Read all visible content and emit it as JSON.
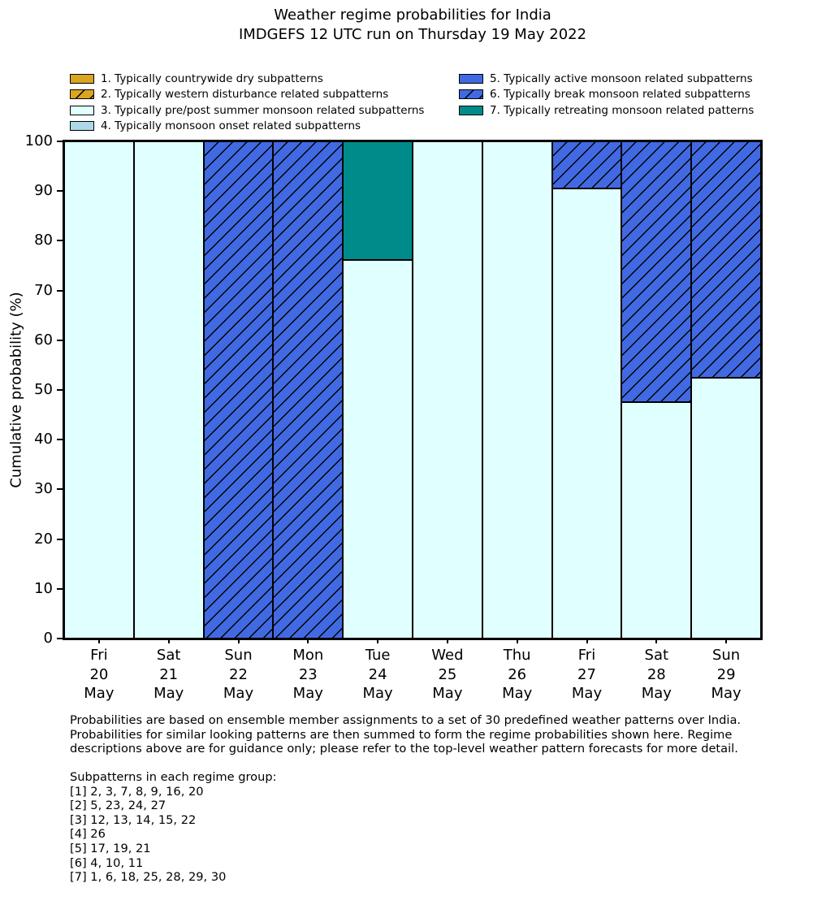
{
  "title": {
    "line1": "Weather regime probabilities for India",
    "line2": "IMDGEFS 12 UTC run on Thursday 19 May 2022"
  },
  "colors": {
    "gold": "#DAA520",
    "lightcyan": "#E0FFFF",
    "lightblue": "#ADD8E6",
    "royalblue": "#4169E1",
    "teal": "#008B8B",
    "edge": "#000000"
  },
  "legend": {
    "items": [
      {
        "label": "1. Typically countrywide dry subpatterns",
        "color": "#DAA520",
        "hatch": false,
        "column": 0
      },
      {
        "label": "2. Typically western disturbance related subpatterns",
        "color": "#DAA520",
        "hatch": true,
        "column": 0
      },
      {
        "label": "3. Typically pre/post summer monsoon related subpatterns",
        "color": "#E0FFFF",
        "hatch": false,
        "column": 0
      },
      {
        "label": "4. Typically monsoon onset related subpatterns",
        "color": "#ADD8E6",
        "hatch": false,
        "column": 0
      },
      {
        "label": "5. Typically active monsoon related subpatterns",
        "color": "#4169E1",
        "hatch": false,
        "column": 1
      },
      {
        "label": "6. Typically break monsoon related subpatterns",
        "color": "#4169E1",
        "hatch": true,
        "column": 1
      },
      {
        "label": "7. Typically retreating monsoon related patterns",
        "color": "#008B8B",
        "hatch": false,
        "column": 1
      }
    ]
  },
  "chart_data": {
    "type": "bar",
    "stacked": true,
    "title": "Weather regime probabilities for India\nIMDGEFS 12 UTC run on Thursday 19 May 2022",
    "ylabel": "Cumulative probability (%)",
    "xlabel": "",
    "ylim": [
      0,
      100
    ],
    "yticks": [
      0,
      10,
      20,
      30,
      40,
      50,
      60,
      70,
      80,
      90,
      100
    ],
    "grid": false,
    "legend_position": "top, two columns, frameless",
    "categories": [
      "Fri\n20\nMay",
      "Sat\n21\nMay",
      "Sun\n22\nMay",
      "Mon\n23\nMay",
      "Tue\n24\nMay",
      "Wed\n25\nMay",
      "Thu\n26\nMay",
      "Fri\n27\nMay",
      "Sat\n28\nMay",
      "Sun\n29\nMay"
    ],
    "series": [
      {
        "name": "1. Typically countrywide dry subpatterns",
        "color": "#DAA520",
        "hatch": false,
        "values": [
          0,
          0,
          0,
          0,
          0,
          0,
          0,
          0,
          0,
          0
        ]
      },
      {
        "name": "2. Typically western disturbance related subpatterns",
        "color": "#DAA520",
        "hatch": true,
        "values": [
          0,
          0,
          0,
          0,
          0,
          0,
          0,
          0,
          0,
          0
        ]
      },
      {
        "name": "3. Typically pre/post summer monsoon related subpatterns",
        "color": "#E0FFFF",
        "hatch": false,
        "values": [
          100,
          100,
          0,
          0,
          76.2,
          100,
          100,
          90.5,
          47.6,
          52.4
        ]
      },
      {
        "name": "4. Typically monsoon onset related subpatterns",
        "color": "#ADD8E6",
        "hatch": false,
        "values": [
          0,
          0,
          0,
          0,
          0,
          0,
          0,
          0,
          0,
          0
        ]
      },
      {
        "name": "5. Typically active monsoon related subpatterns",
        "color": "#4169E1",
        "hatch": false,
        "values": [
          0,
          0,
          0,
          0,
          0,
          0,
          0,
          0,
          0,
          0
        ]
      },
      {
        "name": "6. Typically break monsoon related subpatterns",
        "color": "#4169E1",
        "hatch": true,
        "values": [
          0,
          0,
          100,
          100,
          0,
          0,
          0,
          9.5,
          52.4,
          47.6
        ]
      },
      {
        "name": "7. Typically retreating monsoon related patterns",
        "color": "#008B8B",
        "hatch": false,
        "values": [
          0,
          0,
          0,
          0,
          23.8,
          0,
          0,
          0,
          0,
          0
        ]
      }
    ]
  },
  "footer": {
    "para": "Probabilities are based on ensemble member assignments to a set of 30 predefined weather patterns over India.\nProbabilities for similar looking patterns are then summed to form the regime probabilities shown here. Regime\ndescriptions above are for guidance only; please refer to the top-level weather pattern forecasts for more detail.",
    "subpatterns": "Subpatterns in each regime group:\n[1] 2, 3, 7, 8, 9, 16, 20\n[2] 5, 23, 24, 27\n[3] 12, 13, 14, 15, 22\n[4] 26\n[5] 17, 19, 21\n[6] 4, 10, 11\n[7] 1, 6, 18, 25, 28, 29, 30"
  }
}
